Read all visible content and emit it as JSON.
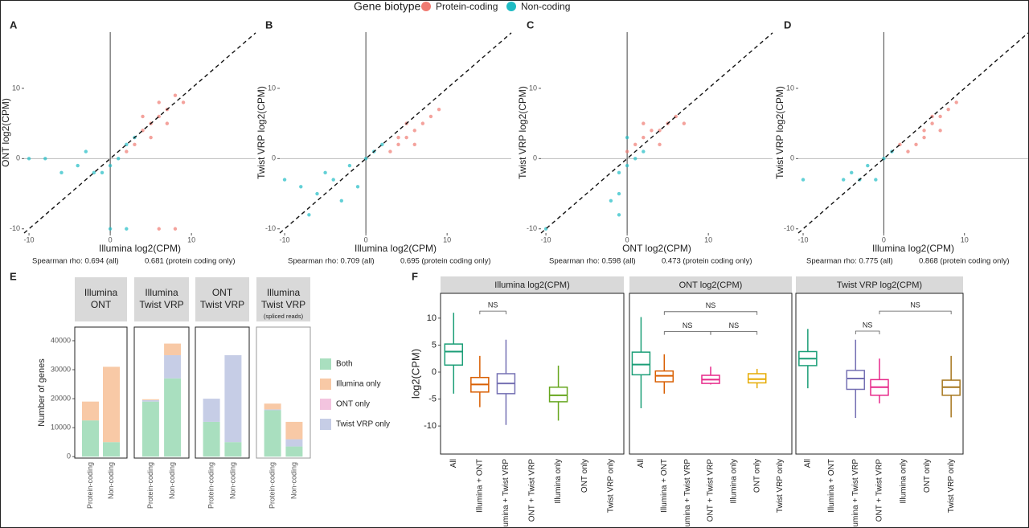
{
  "legend": {
    "title": "Gene biotype",
    "entries": [
      {
        "name": "Protein-coding",
        "color": "#f07b72"
      },
      {
        "name": "Non-coding",
        "color": "#1fbcc4"
      }
    ]
  },
  "chart_data": [
    {
      "type": "scatter",
      "panel_label": "A",
      "x_label": "Illumina log2(CPM)",
      "y_label": "ONT log2(CPM)",
      "stats": [
        "Spearman rho: 0.694 (all)",
        "0.681 (protein coding only)"
      ],
      "xlim": [
        -10.6,
        17.9
      ],
      "ylim": [
        -10.6,
        18
      ],
      "xticks": [
        -10,
        0,
        10
      ],
      "yticks": [
        -10,
        0,
        10
      ],
      "series": [
        {
          "x": [
            3,
            4,
            5,
            6,
            7,
            8,
            5,
            6,
            2,
            4,
            7,
            9,
            6,
            8
          ],
          "y": [
            2,
            4,
            5,
            6,
            7,
            9,
            3,
            8,
            1,
            6,
            5,
            8,
            -10,
            -10
          ]
        },
        {
          "x": [
            -8,
            -4,
            -2,
            0,
            1,
            2,
            -3,
            -1,
            3,
            -6,
            0,
            2,
            -10
          ],
          "y": [
            0,
            -1,
            -2,
            -1,
            0,
            2,
            1,
            -2,
            3,
            -2,
            -10,
            -10,
            0
          ]
        }
      ]
    },
    {
      "type": "scatter",
      "panel_label": "B",
      "x_label": "Illumina log2(CPM)",
      "y_label": "Twist VRP log2(CPM)",
      "stats": [
        "Spearman rho: 0.709 (all)",
        "0.695 (protein coding only)"
      ],
      "xlim": [
        -10.6,
        17.9
      ],
      "ylim": [
        -10.6,
        18
      ],
      "xticks": [
        -10,
        0,
        10
      ],
      "yticks": [
        -10,
        0,
        10
      ],
      "series": [
        {
          "x": [
            3,
            4,
            5,
            6,
            7,
            8,
            9,
            5,
            6,
            4
          ],
          "y": [
            1,
            2,
            3,
            4,
            5,
            6,
            7,
            5,
            2,
            3
          ]
        },
        {
          "x": [
            -8,
            -6,
            -5,
            -4,
            -2,
            -1,
            0,
            1,
            2,
            -3,
            -7,
            -10
          ],
          "y": [
            -4,
            -5,
            -2,
            -3,
            -1,
            -4,
            0,
            1,
            2,
            -6,
            -8,
            -3
          ]
        }
      ]
    },
    {
      "type": "scatter",
      "panel_label": "C",
      "x_label": "ONT log2(CPM)",
      "y_label": "Twist VRP log2(CPM)",
      "stats": [
        "Spearman rho: 0.598 (all)",
        "0.473 (protein coding only)"
      ],
      "xlim": [
        -10.6,
        17.9
      ],
      "ylim": [
        -10.6,
        18
      ],
      "xticks": [
        -10,
        0,
        10
      ],
      "yticks": [
        -10,
        0,
        10
      ],
      "series": [
        {
          "x": [
            0,
            1,
            2,
            3,
            4,
            5,
            6,
            7,
            2,
            4
          ],
          "y": [
            1,
            2,
            3,
            4,
            4,
            5,
            6,
            5,
            5,
            2
          ]
        },
        {
          "x": [
            -1,
            -1,
            0,
            0,
            1,
            -2,
            2,
            -1,
            -10
          ],
          "y": [
            -5,
            -2,
            3,
            -1,
            0,
            -6,
            1,
            -8,
            -10
          ]
        }
      ]
    },
    {
      "type": "scatter",
      "panel_label": "D",
      "x_label": "Illumina log2(CPM)",
      "y_label": "Twist VRP log2(CPM)",
      "stats": [
        "Spearman rho: 0.775 (all)",
        "0.868 (protein coding only)"
      ],
      "xlim": [
        -10.6,
        17.9
      ],
      "ylim": [
        -10.6,
        18
      ],
      "xticks": [
        -10,
        0,
        10
      ],
      "yticks": [
        -10,
        0,
        10
      ],
      "series": [
        {
          "x": [
            3,
            4,
            5,
            6,
            7,
            8,
            9,
            5,
            6,
            7,
            2
          ],
          "y": [
            1,
            2,
            4,
            5,
            6,
            7,
            8,
            3,
            6,
            4,
            2
          ]
        },
        {
          "x": [
            -4,
            -3,
            -2,
            -1,
            0,
            1,
            -5,
            -10
          ],
          "y": [
            -2,
            -3,
            -1,
            -3,
            0,
            1,
            -3,
            -3
          ]
        }
      ]
    },
    {
      "type": "stacked_bar",
      "panel_label": "E",
      "y_label": "Number of genes",
      "categories": [
        "Protein-coding",
        "Non-coding"
      ],
      "ylim": [
        -500,
        44700
      ],
      "yticks": [
        0,
        10000,
        20000,
        30000,
        40000
      ],
      "series": [
        {
          "name": "Both",
          "color": "#a9dfbf"
        },
        {
          "name": "Illumina only",
          "color": "#f8c9a6"
        },
        {
          "name": "ONT only",
          "color": "#f3c4df"
        },
        {
          "name": "Twist VRP only",
          "color": "#c6cde6"
        }
      ],
      "facets": [
        {
          "title": [
            "Illumina",
            "ONT"
          ],
          "values": [
            [
              12500,
              5000
            ],
            [
              6500,
              26000
            ],
            [
              0,
              0
            ],
            [
              0,
              0
            ]
          ]
        },
        {
          "title": [
            "Illumina",
            "Twist VRP"
          ],
          "values": [
            [
              19000,
              27000
            ],
            [
              300,
              4000
            ],
            [
              0,
              0
            ],
            [
              500,
              8000
            ]
          ]
        },
        {
          "title": [
            "ONT",
            "Twist VRP"
          ],
          "values": [
            [
              12000,
              5000
            ],
            [
              0,
              0
            ],
            [
              0,
              0
            ],
            [
              8000,
              30000
            ]
          ]
        },
        {
          "title": [
            "Illumina",
            "Twist VRP"
          ],
          "subtitle": "(spliced reads)",
          "values": [
            [
              16000,
              3500
            ],
            [
              2000,
              6000
            ],
            [
              0,
              0
            ],
            [
              300,
              2500
            ]
          ]
        }
      ]
    },
    {
      "type": "box",
      "panel_label": "F",
      "y_label": "log2(CPM)",
      "categories": [
        "All",
        "Illumina + ONT",
        "Illumina + Twist VRP",
        "ONT + Twist VRP",
        "Illumina only",
        "ONT only",
        "Twist VRP only"
      ],
      "colors": [
        "#1b9e77",
        "#d95f02",
        "#7570b3",
        "#e7298a",
        "#66a61e",
        "#e6ab02",
        "#a6761d"
      ],
      "ylim": [
        -15.2,
        14.6
      ],
      "yticks": [
        -10,
        -5,
        0,
        5,
        10
      ],
      "facets": [
        {
          "title": "Illumina log2(CPM)",
          "boxes": [
            {
              "min": -4,
              "q1": 1.3,
              "median": 3.8,
              "q3": 5.2,
              "max": 11
            },
            {
              "min": -6.5,
              "q1": -3.7,
              "median": -2.3,
              "q3": -1,
              "max": 3
            },
            {
              "min": -9.8,
              "q1": -4,
              "median": -2.1,
              "q3": -0.3,
              "max": 6
            },
            null,
            {
              "min": -9,
              "q1": -5.5,
              "median": -4.3,
              "q3": -2.8,
              "max": 1.2
            },
            null,
            null
          ],
          "comparisons": [
            {
              "from": 1,
              "to": 2,
              "y": 11.3,
              "label": "NS"
            }
          ]
        },
        {
          "title": "ONT log2(CPM)",
          "boxes": [
            {
              "min": -6.7,
              "q1": -0.5,
              "median": 1.4,
              "q3": 3.7,
              "max": 10.2
            },
            {
              "min": -4,
              "q1": -1.8,
              "median": -0.7,
              "q3": 0.2,
              "max": 3.3
            },
            null,
            {
              "min": -2.3,
              "q1": -2.1,
              "median": -1.4,
              "q3": -0.6,
              "max": 1
            },
            null,
            {
              "min": -3,
              "q1": -2,
              "median": -1.3,
              "q3": -0.3,
              "max": 0.6
            },
            null
          ],
          "comparisons": [
            {
              "from": 1,
              "to": 5,
              "y": 11.2,
              "label": "NS"
            },
            {
              "from": 1,
              "to": 3,
              "y": 7.5,
              "label": "NS"
            },
            {
              "from": 3,
              "to": 5,
              "y": 7.5,
              "label": "NS"
            }
          ]
        },
        {
          "title": "Twist VRP log2(CPM)",
          "boxes": [
            {
              "min": -3,
              "q1": 1.2,
              "median": 2.5,
              "q3": 3.8,
              "max": 8
            },
            null,
            {
              "min": -8.5,
              "q1": -3.2,
              "median": -1.2,
              "q3": 0.3,
              "max": 6
            },
            {
              "min": -5.8,
              "q1": -4.3,
              "median": -2.8,
              "q3": -1.4,
              "max": 2.5
            },
            null,
            null,
            {
              "min": -8.4,
              "q1": -4.3,
              "median": -2.8,
              "q3": -1.5,
              "max": 3
            }
          ],
          "comparisons": [
            {
              "from": 3,
              "to": 6,
              "y": 11.3,
              "label": "NS"
            },
            {
              "from": 2,
              "to": 3,
              "y": 7.6,
              "label": "NS"
            }
          ]
        }
      ]
    }
  ]
}
